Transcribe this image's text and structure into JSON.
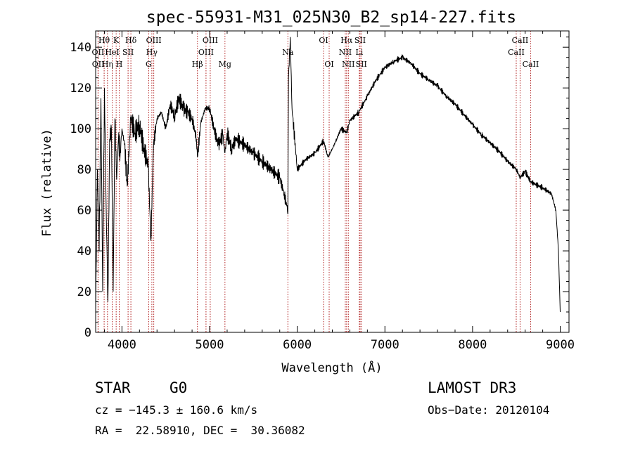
{
  "chart_data": {
    "type": "line",
    "title": "spec-55931-M31_025N30_B2_sp14-227.fits",
    "xlabel": "Wavelength (Å)",
    "ylabel": "Flux (relative)",
    "xlim": [
      3700,
      9100
    ],
    "ylim": [
      0,
      148
    ],
    "xticks": [
      4000,
      5000,
      6000,
      7000,
      8000,
      9000
    ],
    "yticks": [
      0,
      20,
      40,
      60,
      80,
      100,
      120,
      140
    ],
    "xtick_labels": [
      "4000",
      "5000",
      "6000",
      "7000",
      "8000",
      "9000"
    ],
    "ytick_labels": [
      "0",
      "20",
      "40",
      "60",
      "80",
      "100",
      "120",
      "140"
    ],
    "grid": false,
    "series": [
      {
        "name": "spectrum",
        "x": [
          3700,
          3720,
          3740,
          3760,
          3780,
          3800,
          3820,
          3840,
          3860,
          3880,
          3900,
          3920,
          3940,
          3960,
          3980,
          4000,
          4030,
          4060,
          4100,
          4150,
          4200,
          4250,
          4300,
          4330,
          4360,
          4400,
          4450,
          4500,
          4550,
          4600,
          4650,
          4700,
          4750,
          4800,
          4850,
          4861,
          4900,
          4950,
          5000,
          5050,
          5100,
          5150,
          5175,
          5200,
          5250,
          5300,
          5400,
          5500,
          5600,
          5700,
          5800,
          5850,
          5880,
          5893,
          5900,
          5920,
          5940,
          6000,
          6100,
          6200,
          6300,
          6350,
          6400,
          6450,
          6500,
          6563,
          6600,
          6700,
          6800,
          6900,
          7000,
          7100,
          7200,
          7300,
          7400,
          7500,
          7600,
          7700,
          7800,
          7900,
          8000,
          8100,
          8200,
          8300,
          8400,
          8500,
          8542,
          8600,
          8662,
          8700,
          8800,
          8900,
          8950,
          8980,
          9000
        ],
        "y": [
          10,
          80,
          40,
          115,
          20,
          120,
          60,
          15,
          95,
          100,
          20,
          105,
          75,
          95,
          88,
          100,
          92,
          72,
          105,
          98,
          102,
          90,
          82,
          45,
          92,
          105,
          108,
          100,
          112,
          106,
          115,
          110,
          108,
          105,
          95,
          86,
          103,
          110,
          110,
          100,
          92,
          97,
          88,
          98,
          90,
          95,
          92,
          88,
          84,
          80,
          76,
          68,
          62,
          58,
          125,
          145,
          110,
          80,
          85,
          88,
          94,
          86,
          90,
          95,
          100,
          98,
          104,
          108,
          116,
          124,
          130,
          133,
          135,
          132,
          127,
          124,
          121,
          116,
          112,
          107,
          102,
          97,
          93,
          89,
          84,
          80,
          76,
          79,
          74,
          73,
          71,
          68,
          60,
          40,
          10
        ]
      }
    ],
    "line_markers": [
      {
        "label": "Hθ",
        "x": 3797,
        "row": 0
      },
      {
        "label": "OII",
        "x": 3727,
        "row": 1
      },
      {
        "label": "OII",
        "x": 3729,
        "row": 2
      },
      {
        "label": "K",
        "x": 3934,
        "row": 0
      },
      {
        "label": "H",
        "x": 3969,
        "row": 2
      },
      {
        "label": "HeI",
        "x": 3889,
        "row": 1
      },
      {
        "label": "Hη",
        "x": 3835,
        "row": 2
      },
      {
        "label": "SII",
        "x": 4070,
        "row": 1
      },
      {
        "label": "Hδ",
        "x": 4102,
        "row": 0
      },
      {
        "label": "OIII",
        "x": 4363,
        "row": 0
      },
      {
        "label": "Hγ",
        "x": 4341,
        "row": 1
      },
      {
        "label": "G",
        "x": 4305,
        "row": 2
      },
      {
        "label": "Hβ",
        "x": 4861,
        "row": 2
      },
      {
        "label": "OIII",
        "x": 5007,
        "row": 0
      },
      {
        "label": "OIII",
        "x": 4959,
        "row": 1
      },
      {
        "label": "Mg",
        "x": 5175,
        "row": 2
      },
      {
        "label": "Na",
        "x": 5893,
        "row": 1
      },
      {
        "label": "OI",
        "x": 6300,
        "row": 0
      },
      {
        "label": "OI",
        "x": 6364,
        "row": 2
      },
      {
        "label": "Hα",
        "x": 6563,
        "row": 0
      },
      {
        "label": "NII",
        "x": 6548,
        "row": 1
      },
      {
        "label": "NII",
        "x": 6583,
        "row": 2
      },
      {
        "label": "SII",
        "x": 6717,
        "row": 0
      },
      {
        "label": "Li",
        "x": 6708,
        "row": 1
      },
      {
        "label": "SII",
        "x": 6731,
        "row": 2
      },
      {
        "label": "CaII",
        "x": 8542,
        "row": 0
      },
      {
        "label": "CaII",
        "x": 8498,
        "row": 1
      },
      {
        "label": "CaII",
        "x": 8662,
        "row": 2
      }
    ]
  },
  "info": {
    "class": "STAR",
    "subclass": "G0",
    "survey": "LAMOST DR3",
    "cz_text": "cz = −145.3 ± 160.6 km/s",
    "obs_date_text": "Obs−Date: 20120104",
    "coords_text": "RA =  22.58910, DEC =  30.36082"
  },
  "colors": {
    "line": "#000000",
    "marker": "#b22222"
  }
}
